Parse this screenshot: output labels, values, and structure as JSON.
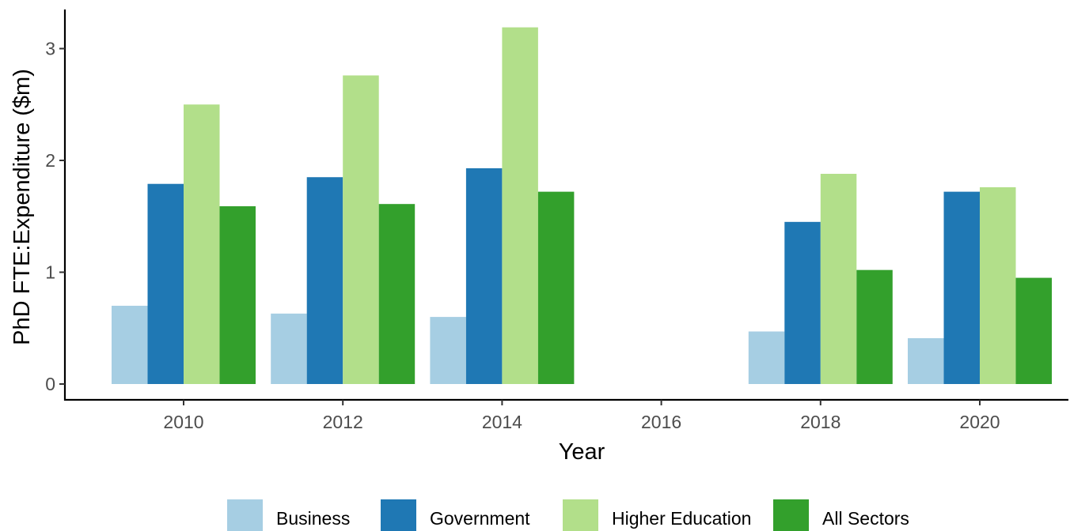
{
  "chart_data": {
    "type": "bar",
    "title": "",
    "xlabel": "Year",
    "ylabel": "PhD FTE:Expenditure ($m)",
    "categories": [
      "2010",
      "2012",
      "2014",
      "2016",
      "2018",
      "2020"
    ],
    "x_ticks": [
      "2010",
      "2012",
      "2014",
      "2016",
      "2018",
      "2020"
    ],
    "y_ticks": [
      "0",
      "1",
      "2",
      "3"
    ],
    "ylim": [
      -0.1,
      3.35
    ],
    "grid": false,
    "legend_position": "bottom",
    "series": [
      {
        "name": "Business",
        "color": "#a6cee3",
        "values": [
          0.7,
          0.63,
          0.6,
          null,
          0.47,
          0.41
        ]
      },
      {
        "name": "Government",
        "color": "#1f78b4",
        "values": [
          1.79,
          1.85,
          1.93,
          null,
          1.45,
          1.72
        ]
      },
      {
        "name": "Higher Education",
        "color": "#b2df8a",
        "values": [
          2.5,
          2.76,
          3.19,
          null,
          1.88,
          1.76
        ]
      },
      {
        "name": "All Sectors",
        "color": "#33a02c",
        "values": [
          1.59,
          1.61,
          1.72,
          null,
          1.02,
          0.95
        ]
      }
    ]
  }
}
